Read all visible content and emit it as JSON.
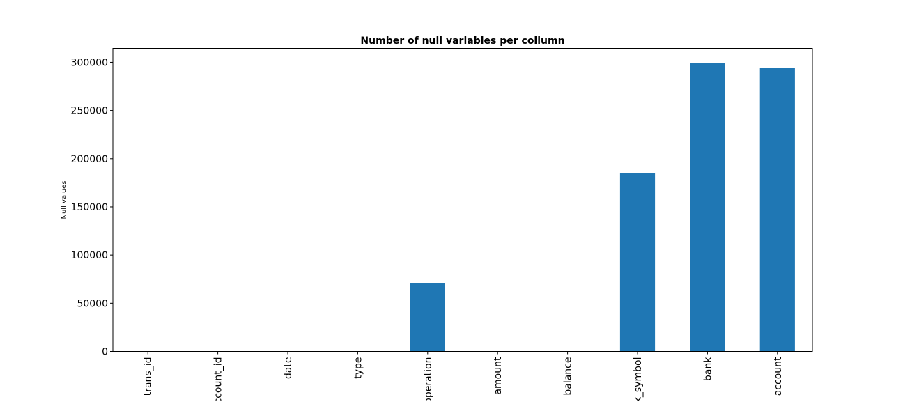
{
  "chart_data": {
    "type": "bar",
    "title": "Number of null variables per collumn",
    "xlabel": "",
    "ylabel": "Null values",
    "categories": [
      "trans_id",
      "account_id",
      "date",
      "type",
      "operation",
      "amount",
      "balance",
      "k_symbol",
      "bank",
      "account"
    ],
    "values": [
      0,
      0,
      0,
      0,
      70761,
      0,
      0,
      185244,
      299443,
      294456
    ],
    "ylim": [
      0,
      314415
    ],
    "yticks": [
      0,
      50000,
      100000,
      150000,
      200000,
      250000,
      300000
    ],
    "bar_color": "#1f77b4",
    "grid": false
  }
}
